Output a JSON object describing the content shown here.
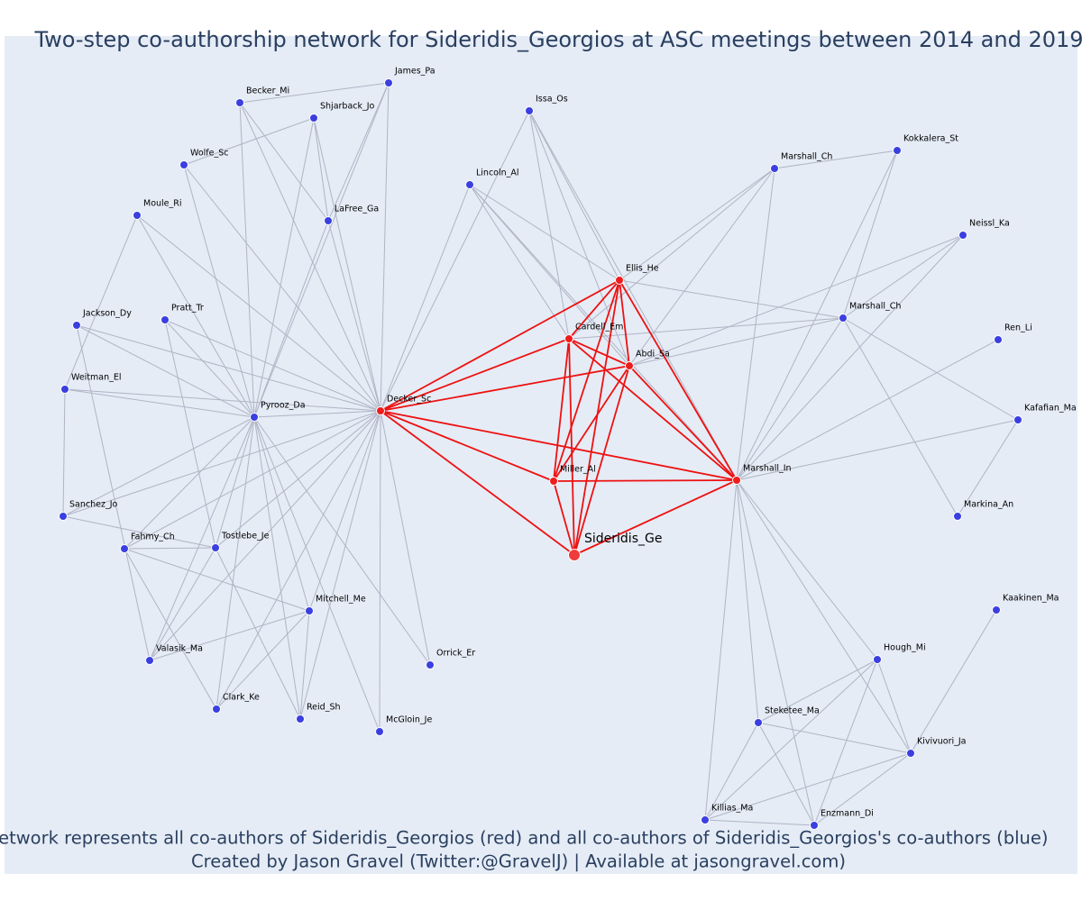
{
  "header": {
    "title": "Two-step co-authorship network for Sideridis_Georgios at ASC meetings between 2014 and 2019"
  },
  "nodes": [
    {
      "label": "Sideridis_Ge",
      "color": "#ef3b3b"
    },
    {
      "label": "Decker_Sc",
      "color": "#ef1c1c"
    },
    {
      "label": "Ellis_He",
      "color": "#ef1c1c"
    },
    {
      "label": "Cardell_Em",
      "color": "#ef1c1c"
    },
    {
      "label": "Abdi_Sa",
      "color": "#ef1c1c"
    },
    {
      "label": "Miller_Al",
      "color": "#ef1c1c"
    },
    {
      "label": "Marshall_In",
      "color": "#ef1c1c"
    },
    {
      "label": "James_Pa",
      "color": "#3b3fe0"
    },
    {
      "label": "Becker_Mi",
      "color": "#3b3fe0"
    },
    {
      "label": "Shjarback_Jo",
      "color": "#3b3fe0"
    },
    {
      "label": "Wolfe_Sc",
      "color": "#3b3fe0"
    },
    {
      "label": "LaFree_Ga",
      "color": "#3b3fe0"
    },
    {
      "label": "Moule_Ri",
      "color": "#3b3fe0"
    },
    {
      "label": "Jackson_Dy",
      "color": "#3b3fe0"
    },
    {
      "label": "Pratt_Tr",
      "color": "#3b3fe0"
    },
    {
      "label": "Weitman_El",
      "color": "#3b3fe0"
    },
    {
      "label": "Pyrooz_Da",
      "color": "#3b3fe0"
    },
    {
      "label": "Sanchez_Jo",
      "color": "#3b3fe0"
    },
    {
      "label": "Fahmy_Ch",
      "color": "#3b3fe0"
    },
    {
      "label": "Tostlebe_Je",
      "color": "#3b3fe0"
    },
    {
      "label": "Mitchell_Me",
      "color": "#3b3fe0"
    },
    {
      "label": "Valasik_Ma",
      "color": "#3b3fe0"
    },
    {
      "label": "Orrick_Er",
      "color": "#3b3fe0"
    },
    {
      "label": "Clark_Ke",
      "color": "#3b3fe0"
    },
    {
      "label": "Reid_Sh",
      "color": "#3b3fe0"
    },
    {
      "label": "McGloin_Je",
      "color": "#3b3fe0"
    },
    {
      "label": "Issa_Os",
      "color": "#3b3fe0"
    },
    {
      "label": "Lincoln_Al",
      "color": "#3b3fe0"
    },
    {
      "label": "Marshall_Ch",
      "color": "#3b3fe0"
    },
    {
      "label": "Kokkalera_St",
      "color": "#3b3fe0"
    },
    {
      "label": "Neissl_Ka",
      "color": "#3b3fe0"
    },
    {
      "label": "Marshall_Ch",
      "color": "#3b3fe0"
    },
    {
      "label": "Ren_Li",
      "color": "#3b3fe0"
    },
    {
      "label": "Kafafian_Ma",
      "color": "#3b3fe0"
    },
    {
      "label": "Markina_An",
      "color": "#3b3fe0"
    },
    {
      "label": "Kaakinen_Ma",
      "color": "#3b3fe0"
    },
    {
      "label": "Hough_Mi",
      "color": "#3b3fe0"
    },
    {
      "label": "Steketee_Ma",
      "color": "#3b3fe0"
    },
    {
      "label": "Kivivuori_Ja",
      "color": "#3b3fe0"
    },
    {
      "label": "Killias_Ma",
      "color": "#3b3fe0"
    },
    {
      "label": "Enzmann_Di",
      "color": "#3b3fe0"
    }
  ],
  "footer": {
    "lines": [
      "Network represents all co-authors of Sideridis_Georgios (red) and all co-authors of Sideridis_Georgios's co-authors (blue)",
      "Created by Jason Gravel (Twitter:@GravelJ) | Available at jasongravel.com)"
    ]
  }
}
